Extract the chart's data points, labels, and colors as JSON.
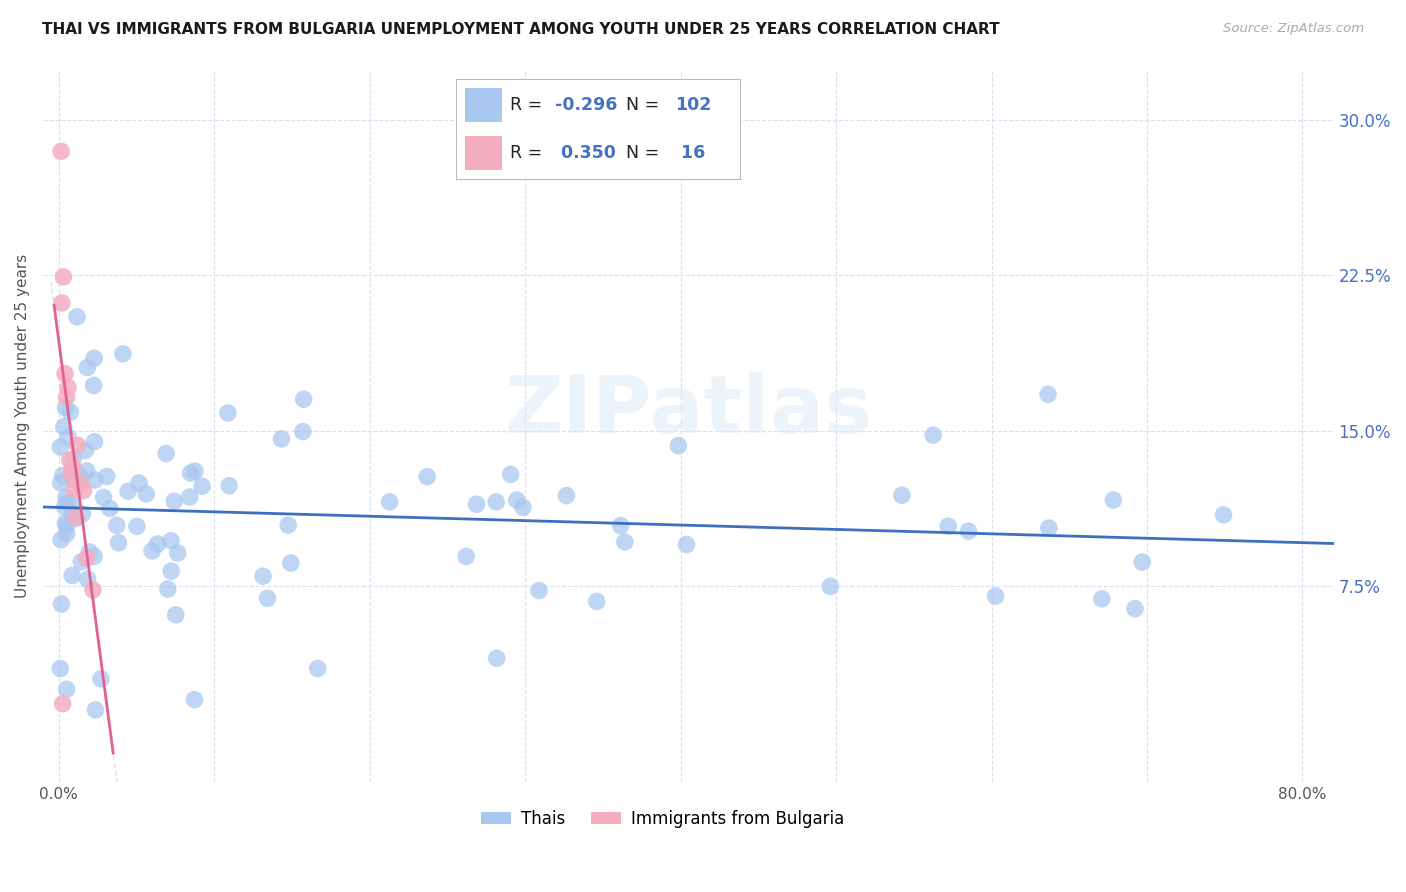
{
  "title": "THAI VS IMMIGRANTS FROM BULGARIA UNEMPLOYMENT AMONG YOUTH UNDER 25 YEARS CORRELATION CHART",
  "source": "Source: ZipAtlas.com",
  "ylabel": "Unemployment Among Youth under 25 years",
  "x_tick_labels": [
    "0.0%",
    "",
    "",
    "",
    "",
    "",
    "",
    "",
    "80.0%"
  ],
  "x_tick_values": [
    0.0,
    10.0,
    20.0,
    30.0,
    40.0,
    50.0,
    60.0,
    70.0,
    80.0
  ],
  "y_tick_labels": [
    "7.5%",
    "15.0%",
    "22.5%",
    "30.0%"
  ],
  "y_tick_values": [
    7.5,
    15.0,
    22.5,
    30.0
  ],
  "xlim": [
    -1.0,
    82.0
  ],
  "ylim": [
    -2.0,
    32.5
  ],
  "thai_color": "#a8c8f0",
  "bulgarian_color": "#f4aec0",
  "thai_line_color": "#3d6fbe",
  "bulgarian_line_color": "#e06090",
  "watermark": "ZIPatlas",
  "background_color": "#ffffff",
  "grid_color": "#d8dff0",
  "title_color": "#1a1a1a",
  "right_ytick_color": "#4472c4",
  "legend_r_color": "#4472c4",
  "legend_label_color": "#000000",
  "thai_R": -0.296,
  "thai_N": 102,
  "bulgarian_R": 0.35,
  "bulgarian_N": 16,
  "bottom_legend_labels": [
    "Thais",
    "Immigrants from Bulgaria"
  ]
}
